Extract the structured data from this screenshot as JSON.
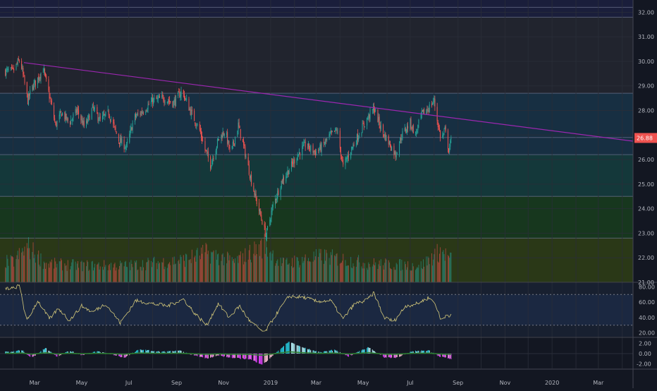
{
  "theme": {
    "background": "#131722",
    "grid": "#2a2e39",
    "axis_text": "#b2b5be",
    "bullish": "#26a69a",
    "bearish": "#ef5350",
    "trendline": "#9c27b0",
    "rsi_line": "#d4c87a",
    "last_price_badge": "#ef5350",
    "fib_bands": [
      "#1a1f3d",
      "#22252f",
      "#173044",
      "#143a3c",
      "#17391f",
      "#2b3a17"
    ],
    "fib_line": "#6e7590"
  },
  "time_axis": {
    "labels": [
      "Mar",
      "May",
      "Jul",
      "Sep",
      "Nov",
      "2019",
      "Mar",
      "May",
      "Jul",
      "Sep",
      "Nov",
      "2020",
      "Mar"
    ]
  },
  "price_axis": {
    "ticks": [
      "32.00",
      "31.00",
      "30.00",
      "29.00",
      "28.00",
      "27.00",
      "26.00",
      "25.00",
      "24.00",
      "23.00",
      "22.00",
      "21.00"
    ]
  },
  "last_price": "26.88",
  "rsi_axis": {
    "ticks": [
      "80.00",
      "60.00",
      "40.00",
      "20.00"
    ]
  },
  "macd_axis": {
    "ticks": [
      "2.00",
      "0.00",
      "-2.00"
    ]
  },
  "chart_data": {
    "type": "candlestick",
    "price_range": [
      21,
      32.5
    ],
    "fib_levels": [
      32.2,
      31.8,
      28.7,
      26.9,
      26.2,
      24.5,
      22.8
    ],
    "trendline": {
      "from": [
        "2018-02-15",
        29.95
      ],
      "to": [
        "2020-04-15",
        26.75
      ]
    },
    "price_anchors": [
      [
        "2018-02-01",
        29.6
      ],
      [
        "2018-02-10",
        30.1
      ],
      [
        "2018-02-20",
        28.4
      ],
      [
        "2018-02-25",
        28.9
      ],
      [
        "2018-03-05",
        29.3
      ],
      [
        "2018-03-12",
        29.7
      ],
      [
        "2018-03-20",
        28.6
      ],
      [
        "2018-03-28",
        27.4
      ],
      [
        "2018-04-05",
        27.9
      ],
      [
        "2018-04-15",
        27.5
      ],
      [
        "2018-04-25",
        28.0
      ],
      [
        "2018-05-05",
        27.3
      ],
      [
        "2018-05-15",
        28.1
      ],
      [
        "2018-05-25",
        27.6
      ],
      [
        "2018-06-05",
        27.9
      ],
      [
        "2018-06-18",
        26.8
      ],
      [
        "2018-06-28",
        26.5
      ],
      [
        "2018-07-08",
        27.7
      ],
      [
        "2018-07-20",
        28.0
      ],
      [
        "2018-08-01",
        28.4
      ],
      [
        "2018-08-15",
        28.5
      ],
      [
        "2018-08-28",
        28.3
      ],
      [
        "2018-09-08",
        28.8
      ],
      [
        "2018-09-20",
        27.9
      ],
      [
        "2018-10-01",
        27.2
      ],
      [
        "2018-10-08",
        26.4
      ],
      [
        "2018-10-15",
        25.8
      ],
      [
        "2018-10-25",
        26.8
      ],
      [
        "2018-11-03",
        27.2
      ],
      [
        "2018-11-10",
        26.2
      ],
      [
        "2018-11-20",
        27.4
      ],
      [
        "2018-11-28",
        26.4
      ],
      [
        "2018-12-05",
        25.4
      ],
      [
        "2018-12-12",
        24.5
      ],
      [
        "2018-12-20",
        23.6
      ],
      [
        "2018-12-26",
        22.9
      ],
      [
        "2019-01-04",
        24.1
      ],
      [
        "2019-01-15",
        25.1
      ],
      [
        "2019-01-25",
        25.6
      ],
      [
        "2019-02-05",
        26.2
      ],
      [
        "2019-02-15",
        26.6
      ],
      [
        "2019-02-28",
        26.3
      ],
      [
        "2019-03-08",
        26.5
      ],
      [
        "2019-03-20",
        27.0
      ],
      [
        "2019-03-28",
        27.2
      ],
      [
        "2019-04-05",
        25.7
      ],
      [
        "2019-04-15",
        26.4
      ],
      [
        "2019-04-25",
        27.0
      ],
      [
        "2019-05-05",
        27.6
      ],
      [
        "2019-05-15",
        28.1
      ],
      [
        "2019-05-25",
        27.2
      ],
      [
        "2019-06-05",
        26.6
      ],
      [
        "2019-06-12",
        26.2
      ],
      [
        "2019-06-20",
        27.0
      ],
      [
        "2019-07-01",
        27.5
      ],
      [
        "2019-07-08",
        27.0
      ],
      [
        "2019-07-15",
        27.8
      ],
      [
        "2019-07-25",
        28.1
      ],
      [
        "2019-08-01",
        28.4
      ],
      [
        "2019-08-05",
        27.6
      ],
      [
        "2019-08-10",
        26.8
      ],
      [
        "2019-08-15",
        27.2
      ],
      [
        "2019-08-20",
        26.4
      ],
      [
        "2019-08-24",
        26.88
      ]
    ],
    "rsi_range": [
      15,
      85
    ],
    "rsi_bands": [
      70,
      30
    ],
    "rsi_anchors": [
      [
        "2018-02-01",
        78
      ],
      [
        "2018-02-10",
        82
      ],
      [
        "2018-02-18",
        34
      ],
      [
        "2018-03-05",
        62
      ],
      [
        "2018-03-20",
        38
      ],
      [
        "2018-04-01",
        52
      ],
      [
        "2018-04-15",
        36
      ],
      [
        "2018-05-01",
        55
      ],
      [
        "2018-05-15",
        47
      ],
      [
        "2018-06-01",
        58
      ],
      [
        "2018-06-20",
        33
      ],
      [
        "2018-07-10",
        62
      ],
      [
        "2018-08-01",
        58
      ],
      [
        "2018-08-20",
        55
      ],
      [
        "2018-09-10",
        64
      ],
      [
        "2018-09-25",
        45
      ],
      [
        "2018-10-10",
        30
      ],
      [
        "2018-10-25",
        58
      ],
      [
        "2018-11-08",
        40
      ],
      [
        "2018-11-22",
        55
      ],
      [
        "2018-12-05",
        35
      ],
      [
        "2018-12-24",
        20
      ],
      [
        "2019-01-10",
        47
      ],
      [
        "2019-01-25",
        68
      ],
      [
        "2019-02-15",
        66
      ],
      [
        "2019-03-01",
        61
      ],
      [
        "2019-03-20",
        62
      ],
      [
        "2019-04-05",
        38
      ],
      [
        "2019-04-20",
        58
      ],
      [
        "2019-05-05",
        62
      ],
      [
        "2019-05-15",
        72
      ],
      [
        "2019-05-28",
        40
      ],
      [
        "2019-06-10",
        35
      ],
      [
        "2019-06-25",
        55
      ],
      [
        "2019-07-10",
        58
      ],
      [
        "2019-07-25",
        66
      ],
      [
        "2019-08-03",
        58
      ],
      [
        "2019-08-10",
        35
      ],
      [
        "2019-08-17",
        44
      ],
      [
        "2019-08-24",
        42
      ]
    ],
    "macd_range": [
      -3.2,
      3.2
    ],
    "macd_anchors": [
      [
        "2018-02-01",
        0.4
      ],
      [
        "2018-02-12",
        0.8
      ],
      [
        "2018-02-25",
        -0.9
      ],
      [
        "2018-03-15",
        1.2
      ],
      [
        "2018-03-30",
        -0.6
      ],
      [
        "2018-04-15",
        0.6
      ],
      [
        "2018-05-01",
        -0.3
      ],
      [
        "2018-05-20",
        0.5
      ],
      [
        "2018-06-10",
        -0.2
      ],
      [
        "2018-06-25",
        -0.9
      ],
      [
        "2018-07-15",
        0.9
      ],
      [
        "2018-08-10",
        0.4
      ],
      [
        "2018-09-05",
        0.6
      ],
      [
        "2018-09-20",
        -0.2
      ],
      [
        "2018-10-10",
        -1.0
      ],
      [
        "2018-10-25",
        -0.4
      ],
      [
        "2018-11-10",
        -0.9
      ],
      [
        "2018-12-05",
        -1.2
      ],
      [
        "2018-12-22",
        -2.4
      ],
      [
        "2019-01-10",
        0.5
      ],
      [
        "2019-01-25",
        2.6
      ],
      [
        "2019-02-10",
        1.4
      ],
      [
        "2019-03-05",
        0.3
      ],
      [
        "2019-03-25",
        0.8
      ],
      [
        "2019-04-12",
        -0.6
      ],
      [
        "2019-05-08",
        1.4
      ],
      [
        "2019-05-28",
        -0.8
      ],
      [
        "2019-06-12",
        -0.9
      ],
      [
        "2019-07-05",
        0.5
      ],
      [
        "2019-07-25",
        0.7
      ],
      [
        "2019-08-08",
        -0.6
      ],
      [
        "2019-08-24",
        -1.2
      ]
    ],
    "volume_anchors": [
      [
        "2018-02-01",
        0.55
      ],
      [
        "2018-02-20",
        0.95
      ],
      [
        "2018-03-15",
        0.5
      ],
      [
        "2018-05-01",
        0.45
      ],
      [
        "2018-07-01",
        0.45
      ],
      [
        "2018-09-10",
        0.6
      ],
      [
        "2018-10-10",
        0.8
      ],
      [
        "2018-11-15",
        0.55
      ],
      [
        "2018-12-24",
        1.0
      ],
      [
        "2019-01-15",
        0.5
      ],
      [
        "2019-03-10",
        0.7
      ],
      [
        "2019-05-10",
        0.5
      ],
      [
        "2019-07-15",
        0.45
      ],
      [
        "2019-08-10",
        0.85
      ],
      [
        "2019-08-24",
        0.6
      ]
    ]
  }
}
